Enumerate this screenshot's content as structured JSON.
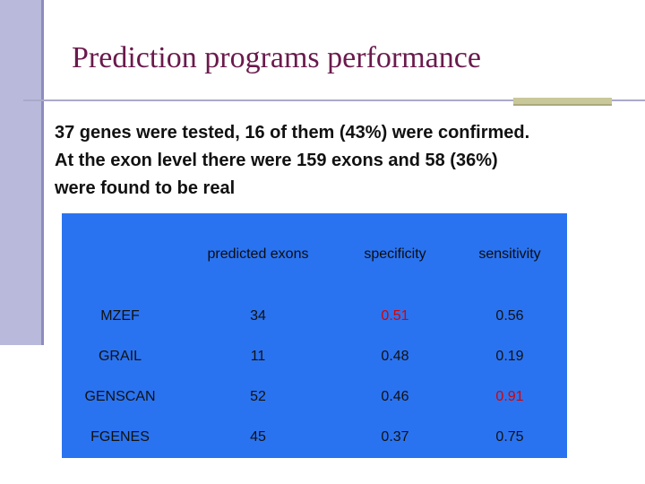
{
  "slide": {
    "title": "Prediction programs performance",
    "body_lines": [
      "37 genes were tested, 16 of them (43%) were confirmed.",
      "At the exon level there were 159 exons and 58 (36%)",
      "were found to be real"
    ]
  },
  "colors": {
    "title": "#6a1a4c",
    "table_background": "#2a73f0",
    "highlight": "#d80000",
    "left_bar": "#b9b9db",
    "accent_bar": "#c8c89a"
  },
  "table": {
    "headers": [
      "",
      "predicted exons",
      "specificity",
      "sensitivity"
    ],
    "rows": [
      [
        "MZEF",
        "34",
        "0.51",
        "0.56"
      ],
      [
        "GRAIL",
        "11",
        "0.48",
        "0.19"
      ],
      [
        "GENSCAN",
        "52",
        "0.46",
        "0.91"
      ],
      [
        "FGENES",
        "45",
        "0.37",
        "0.75"
      ]
    ],
    "highlighted_cells": [
      "MZEF specificity",
      "GENSCAN sensitivity"
    ]
  }
}
